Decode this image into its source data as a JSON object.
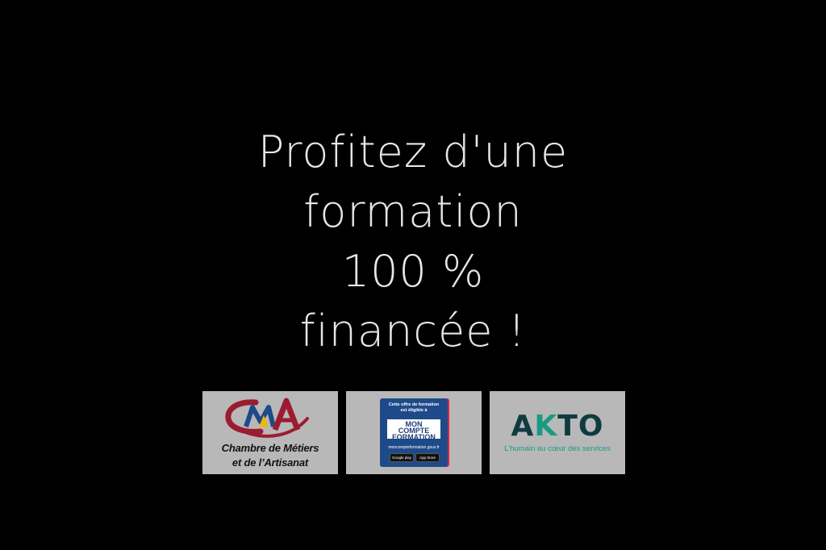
{
  "headline": {
    "line1": "Profitez d'une",
    "line2": "formation",
    "line3": "100 %",
    "line4": "financée !"
  },
  "logos": {
    "cma": {
      "line1": "Chambre de Métiers",
      "line2": "et de l’Artisanat",
      "mark_text": "CMA"
    },
    "mon_compte_formation": {
      "top_line1": "Cette offre de formation",
      "top_line2": "est éligible à",
      "brand_line1": "MON",
      "brand_line2": "COMPTE",
      "brand_line3": "FORMATION",
      "url": "moncompteformation.gouv.fr",
      "google_play": "Google play",
      "app_store": "App Store"
    },
    "akto": {
      "word_a": "A",
      "word_k": "K",
      "word_to": "TO",
      "tagline": "L'humain au cœur des services"
    }
  },
  "colors": {
    "background": "#000000",
    "headline_text": "#e6e6e6",
    "logo_tile": "#b8b8b8",
    "cma_red": "#9b1b30",
    "cma_yellow": "#f2b800",
    "cma_blue": "#1f4a8a",
    "mcf_blue": "#1f4a8a",
    "akto_dark": "#0e3b40",
    "akto_green": "#1a9a82"
  }
}
